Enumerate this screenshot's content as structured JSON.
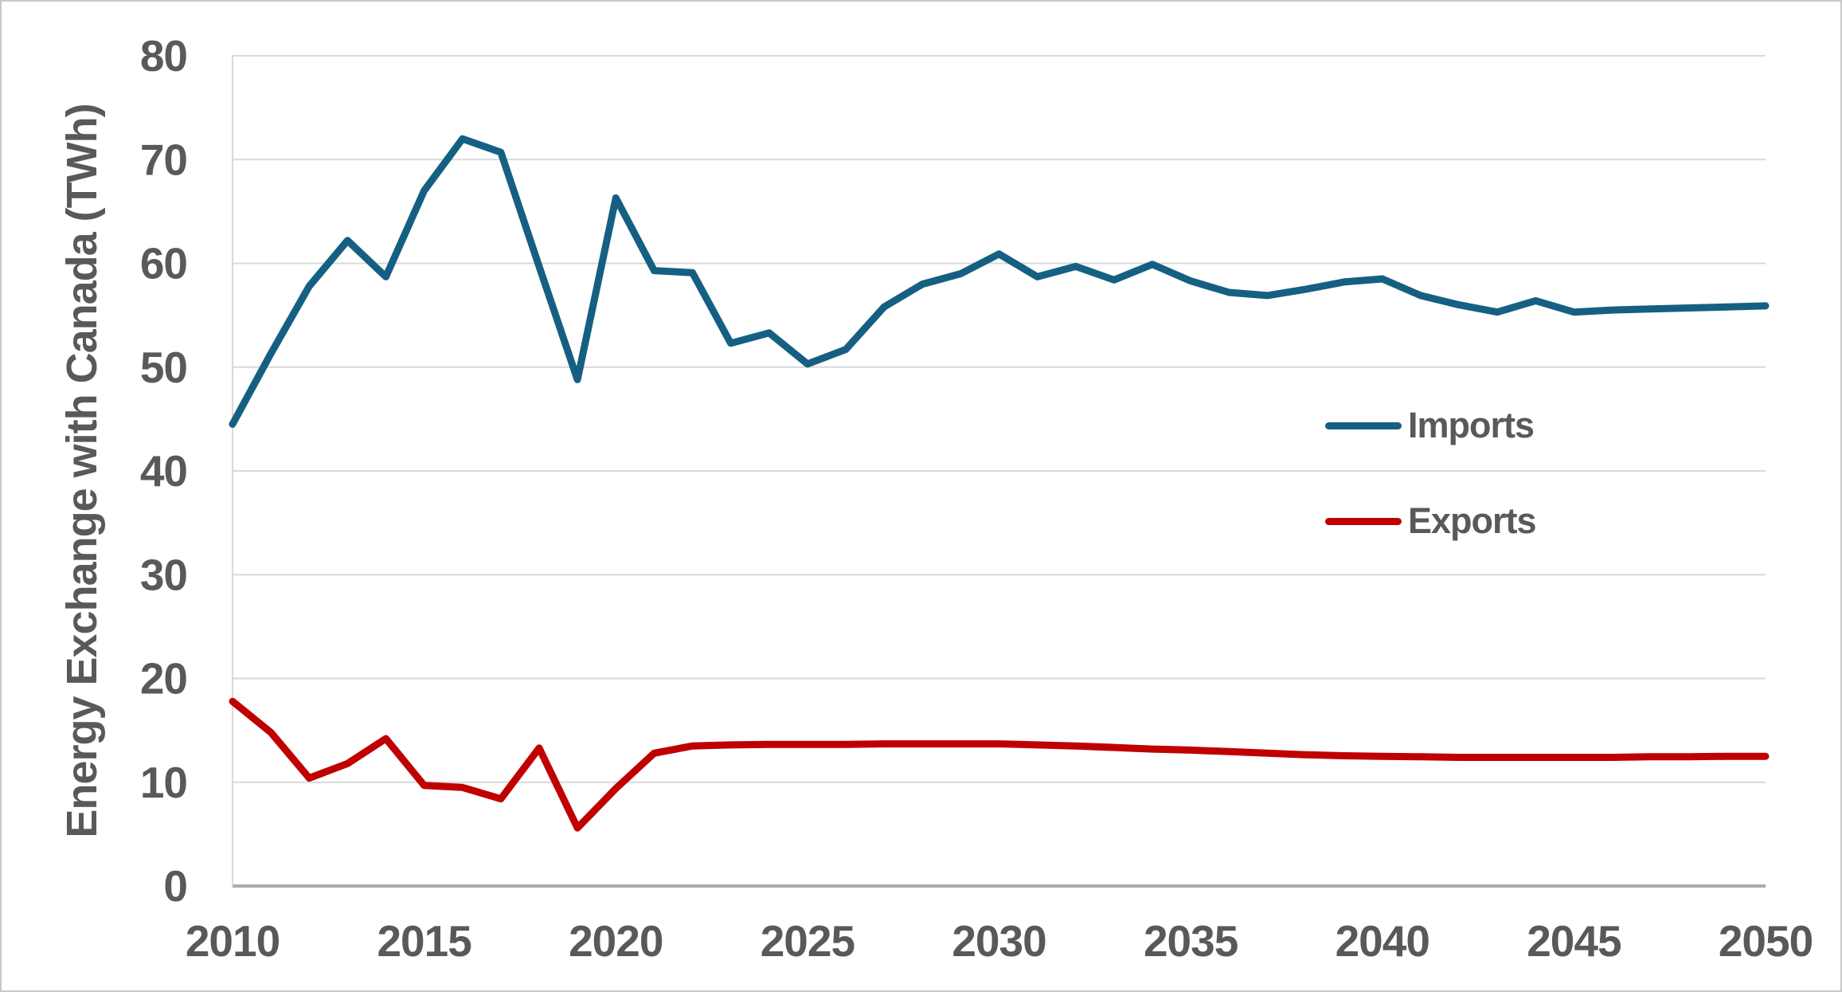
{
  "chart_data": {
    "type": "line",
    "title": "",
    "xlabel": "",
    "ylabel": "Energy Exchange with Canada (TWh)",
    "ylim": [
      0,
      80
    ],
    "yticks": [
      0,
      10,
      20,
      30,
      40,
      50,
      60,
      70,
      80
    ],
    "xticks": [
      2010,
      2015,
      2020,
      2025,
      2030,
      2035,
      2040,
      2045,
      2050
    ],
    "grid": true,
    "legend_position": "inside-right",
    "x": [
      2010,
      2011,
      2012,
      2013,
      2014,
      2015,
      2016,
      2017,
      2018,
      2019,
      2020,
      2021,
      2022,
      2023,
      2024,
      2025,
      2026,
      2027,
      2028,
      2029,
      2030,
      2031,
      2032,
      2033,
      2034,
      2035,
      2036,
      2037,
      2038,
      2039,
      2040,
      2041,
      2042,
      2043,
      2044,
      2045,
      2046,
      2047,
      2048,
      2049,
      2050
    ],
    "series": [
      {
        "name": "Imports",
        "color": "#156082",
        "values": [
          44.5,
          51.3,
          57.8,
          62.2,
          58.7,
          67.0,
          72.0,
          70.7,
          59.7,
          48.8,
          66.3,
          59.3,
          59.1,
          52.3,
          53.3,
          50.3,
          51.7,
          55.8,
          58.0,
          59.0,
          60.9,
          58.7,
          59.7,
          58.4,
          59.9,
          58.3,
          57.2,
          56.9,
          57.5,
          58.2,
          58.5,
          56.9,
          56.0,
          55.3,
          56.4,
          55.3,
          55.5,
          55.6,
          55.7,
          55.8,
          55.9
        ]
      },
      {
        "name": "Exports",
        "color": "#c00000",
        "values": [
          17.8,
          14.8,
          10.4,
          11.8,
          14.2,
          9.7,
          9.5,
          8.4,
          13.3,
          5.6,
          9.4,
          12.8,
          13.5,
          13.6,
          13.65,
          13.65,
          13.65,
          13.7,
          13.7,
          13.7,
          13.7,
          13.6,
          13.5,
          13.35,
          13.2,
          13.1,
          12.95,
          12.8,
          12.65,
          12.55,
          12.5,
          12.45,
          12.4,
          12.4,
          12.4,
          12.4,
          12.4,
          12.45,
          12.45,
          12.5,
          12.5
        ]
      }
    ]
  },
  "style_colors": {
    "gridline": "#d9d9d9",
    "axis_line": "#ababab",
    "tick_text": "#595959"
  }
}
